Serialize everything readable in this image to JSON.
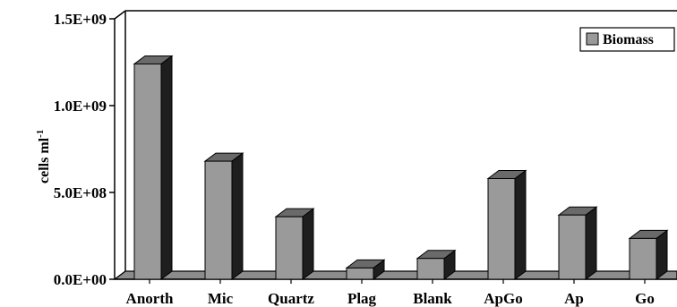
{
  "chart_data": {
    "type": "bar",
    "style": "3d-column",
    "categories": [
      "Anorth",
      "Mic",
      "Quartz",
      "Plag",
      "Blank",
      "ApGo",
      "Ap",
      "Go"
    ],
    "series": [
      {
        "name": "Biomass",
        "values": [
          1240000000,
          680000000,
          360000000,
          65000000,
          120000000,
          580000000,
          370000000,
          235000000
        ]
      }
    ],
    "ylabel": "cells ml",
    "ylabel_superscript": "-1",
    "ylim": [
      0,
      1500000000
    ],
    "y_ticks": [
      "0.0E+00",
      "5.0E+08",
      "1.0E+09",
      "1.5E+09"
    ],
    "y_tick_values": [
      0,
      500000000,
      1000000000,
      1500000000
    ],
    "grid": false,
    "legend_position": "top-right",
    "colors": {
      "bar_front": "#9a9a9a",
      "bar_top": "#6a6a6a",
      "bar_side": "#1e1e1e",
      "floor": "#8c8c8c",
      "outline": "#000000"
    }
  }
}
